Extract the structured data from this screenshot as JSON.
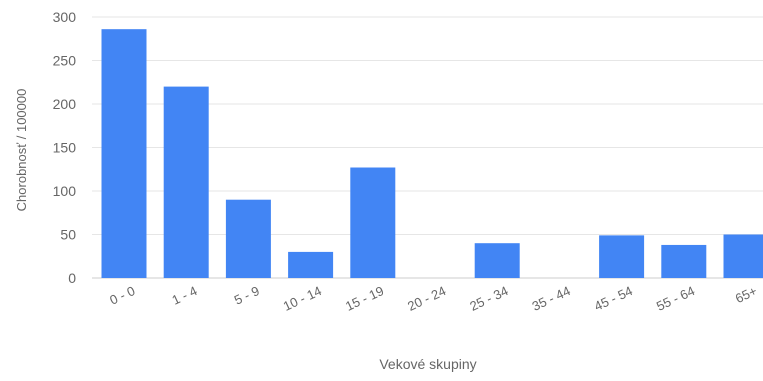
{
  "chart_data": {
    "type": "bar",
    "xlabel": "Vekové skupiny",
    "ylabel": "Chorobnosť / 100000",
    "ylim": [
      0,
      300
    ],
    "yticks": [
      0,
      50,
      100,
      150,
      200,
      250,
      300
    ],
    "grid": true,
    "categories": [
      "0 - 0",
      "1 - 4",
      "5 - 9",
      "10 - 14",
      "15 - 19",
      "20 - 24",
      "25 - 34",
      "35 - 44",
      "45 - 54",
      "55 - 64",
      "65+"
    ],
    "values": [
      286,
      220,
      90,
      30,
      127,
      0,
      40,
      0,
      49,
      38,
      50
    ],
    "colors": {
      "bar": "#4285f4",
      "grid": "#e6e6e6",
      "axis": "#cccccc",
      "text": "#666666"
    }
  }
}
